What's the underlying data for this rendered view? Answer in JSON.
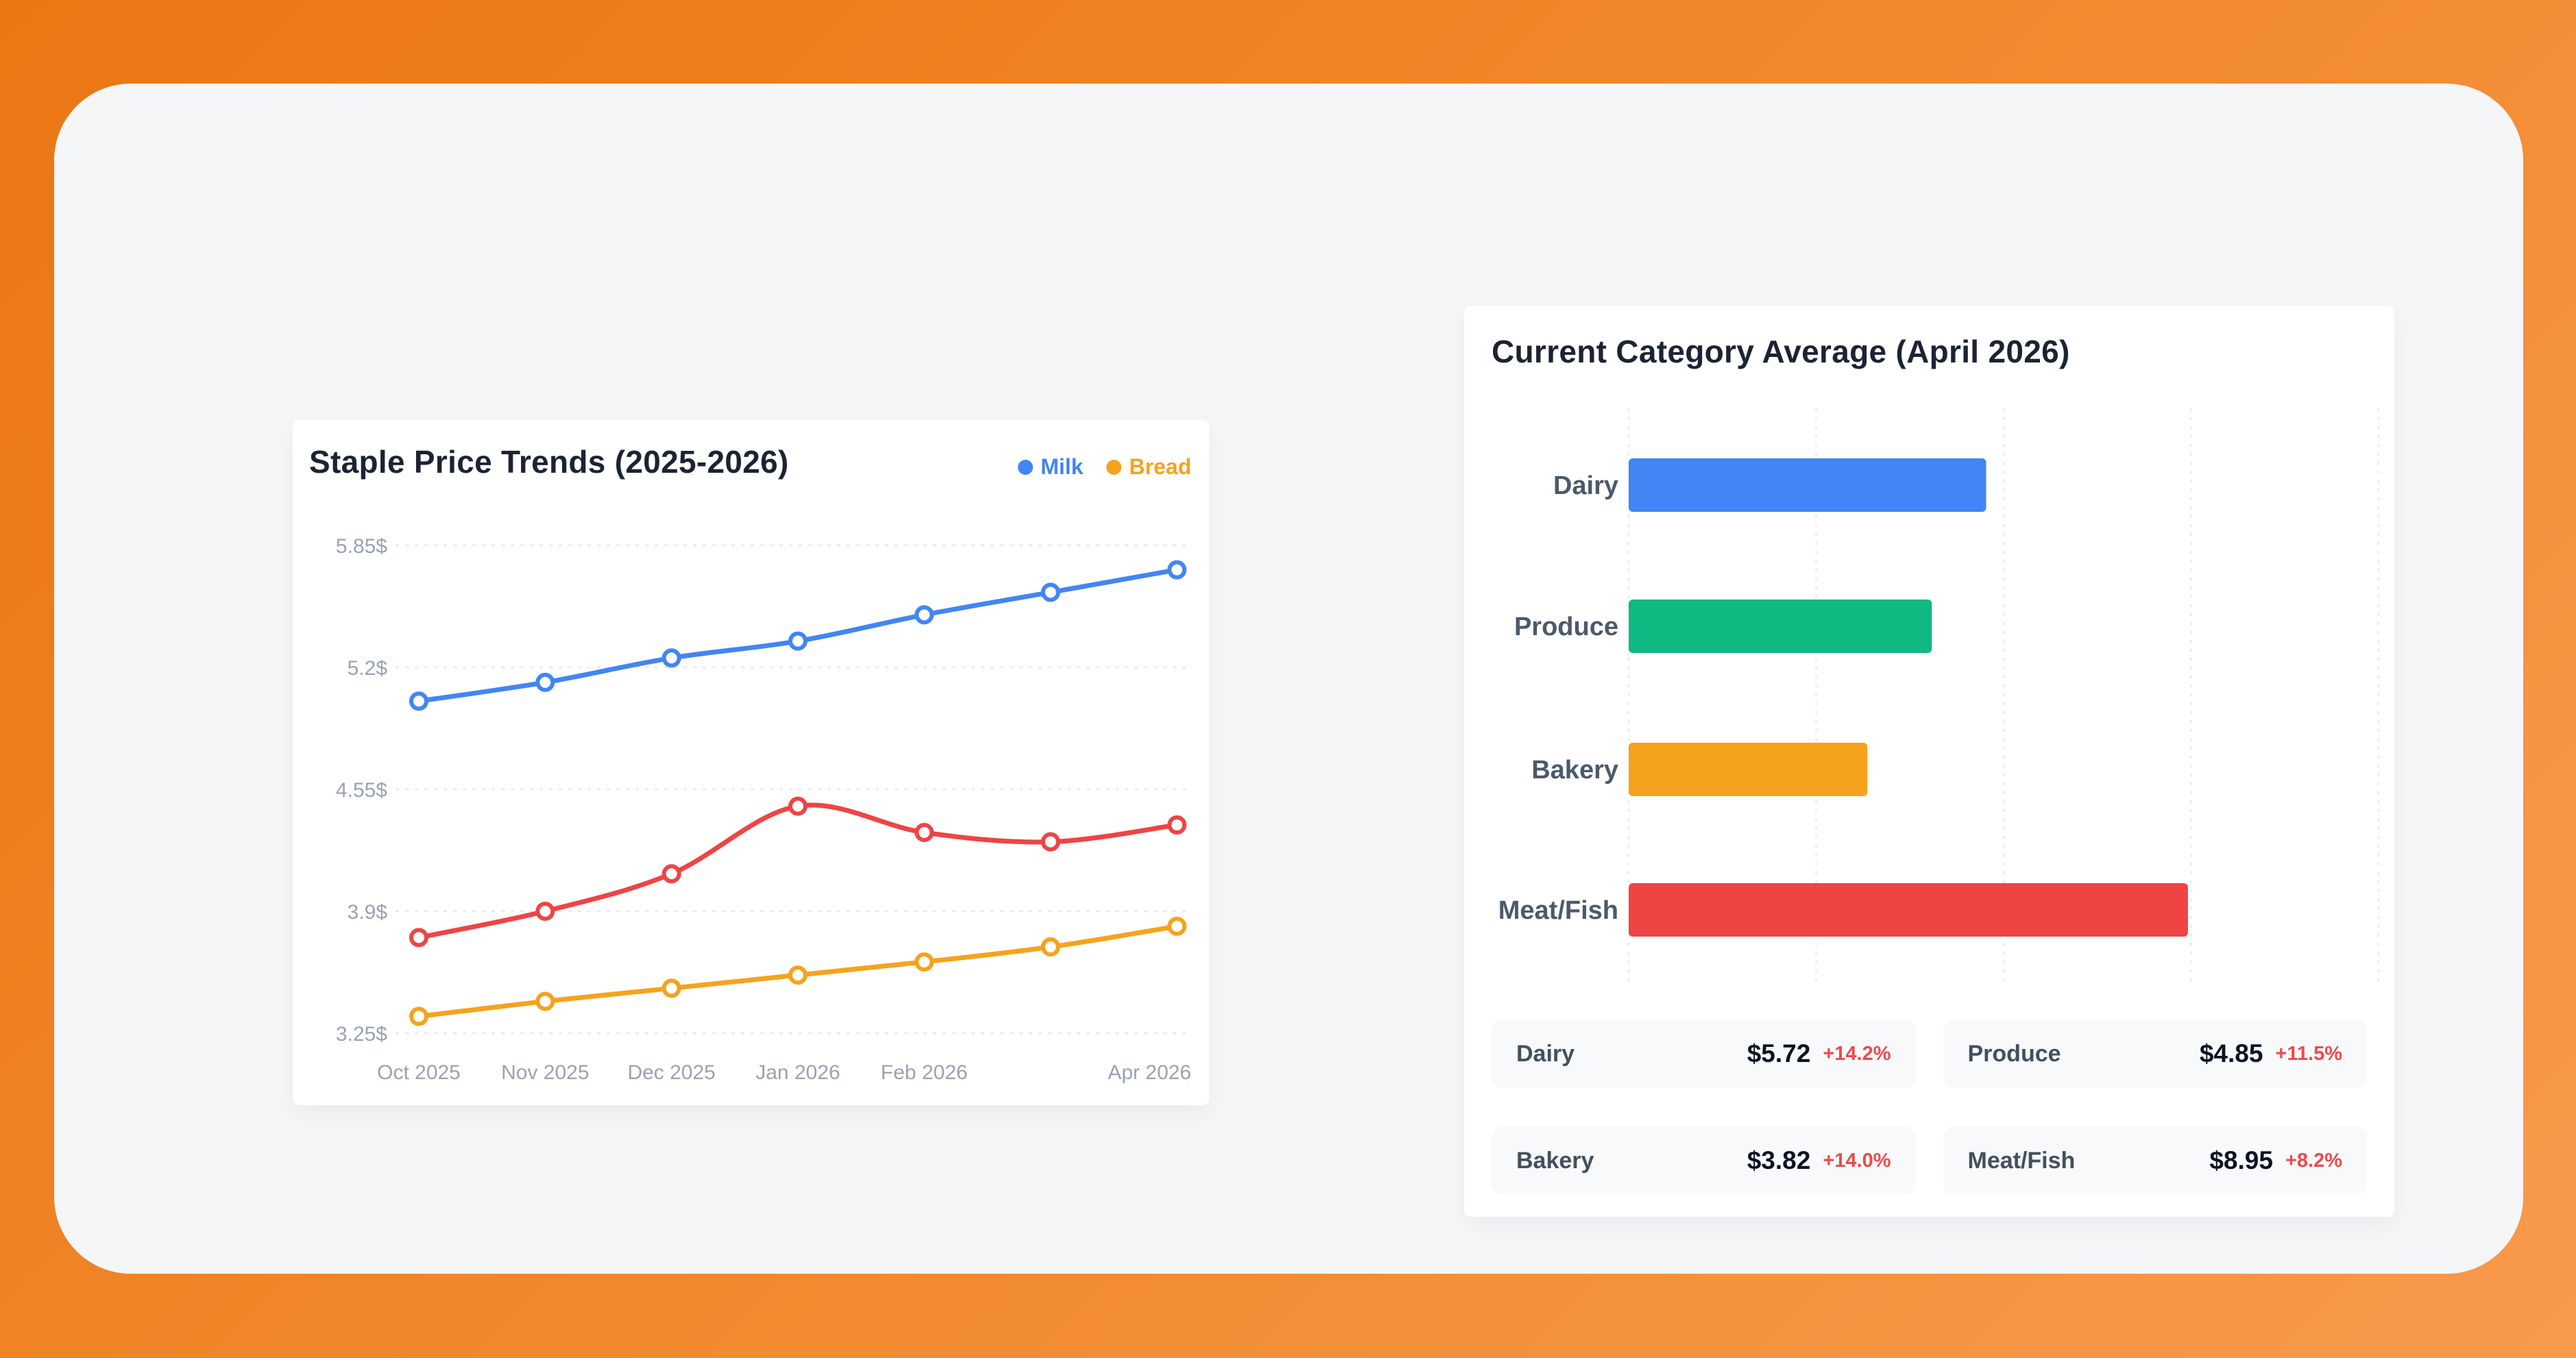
{
  "theme": {
    "page_gradient_start": "#ea7712",
    "page_gradient_end": "#f89a4b",
    "card_bg": "#f4f6f8",
    "panel_bg": "#ffffff",
    "title_color": "#1b2334",
    "axis_label_color": "#98a2b3",
    "category_label_color": "#4b5a6b",
    "gridline_color": "#e5eaf1",
    "stat_card_bg": "#f7f9fb",
    "change_color": "#ee4a4a"
  },
  "chart_data": [
    {
      "type": "line",
      "title": "Staple Price Trends (2025-2026)",
      "legend": [
        {
          "label": "Milk",
          "color": "#4285f4"
        },
        {
          "label": "Bread",
          "color": "#f5a31d"
        }
      ],
      "legend_position": "top-right",
      "grid": "horizontal-dashed",
      "ylim": [
        3.25,
        5.85
      ],
      "y_tick_labels": [
        "5.85$",
        "5.2$",
        "4.55$",
        "3.9$",
        "3.25$"
      ],
      "y_tick_values": [
        5.85,
        5.2,
        4.55,
        3.9,
        3.25
      ],
      "x_tick_labels": [
        "Oct 2025",
        "Nov 2025",
        "Dec 2025",
        "Jan 2026",
        "Feb 2026",
        "",
        "Apr 2026"
      ],
      "series": [
        {
          "name": "Milk",
          "color": "#4285f4",
          "values": [
            5.02,
            5.12,
            5.25,
            5.34,
            5.48,
            5.6,
            5.72
          ]
        },
        {
          "name": "",
          "color": "#ef4444",
          "values": [
            3.76,
            3.9,
            4.1,
            4.46,
            4.32,
            4.27,
            4.36
          ]
        },
        {
          "name": "Bread",
          "color": "#f5a31d",
          "values": [
            3.34,
            3.42,
            3.49,
            3.56,
            3.63,
            3.71,
            3.82
          ]
        }
      ]
    },
    {
      "type": "bar",
      "orientation": "horizontal",
      "title": "Current Category Average (April 2026)",
      "categories": [
        "Dairy",
        "Produce",
        "Bakery",
        "Meat/Fish"
      ],
      "values": [
        5.72,
        4.85,
        3.82,
        8.95
      ],
      "colors": [
        "#4285f4",
        "#10b981",
        "#f5a31d",
        "#ef4444"
      ],
      "xlim": [
        0,
        12
      ],
      "gridlines_every": 3,
      "grid": "vertical-dashed"
    }
  ],
  "stats": {
    "cards": [
      {
        "label": "Dairy",
        "value": "$5.72",
        "change": "+14.2%"
      },
      {
        "label": "Produce",
        "value": "$4.85",
        "change": "+11.5%"
      },
      {
        "label": "Bakery",
        "value": "$3.82",
        "change": "+14.0%"
      },
      {
        "label": "Meat/Fish",
        "value": "$8.95",
        "change": "+8.2%"
      }
    ]
  }
}
